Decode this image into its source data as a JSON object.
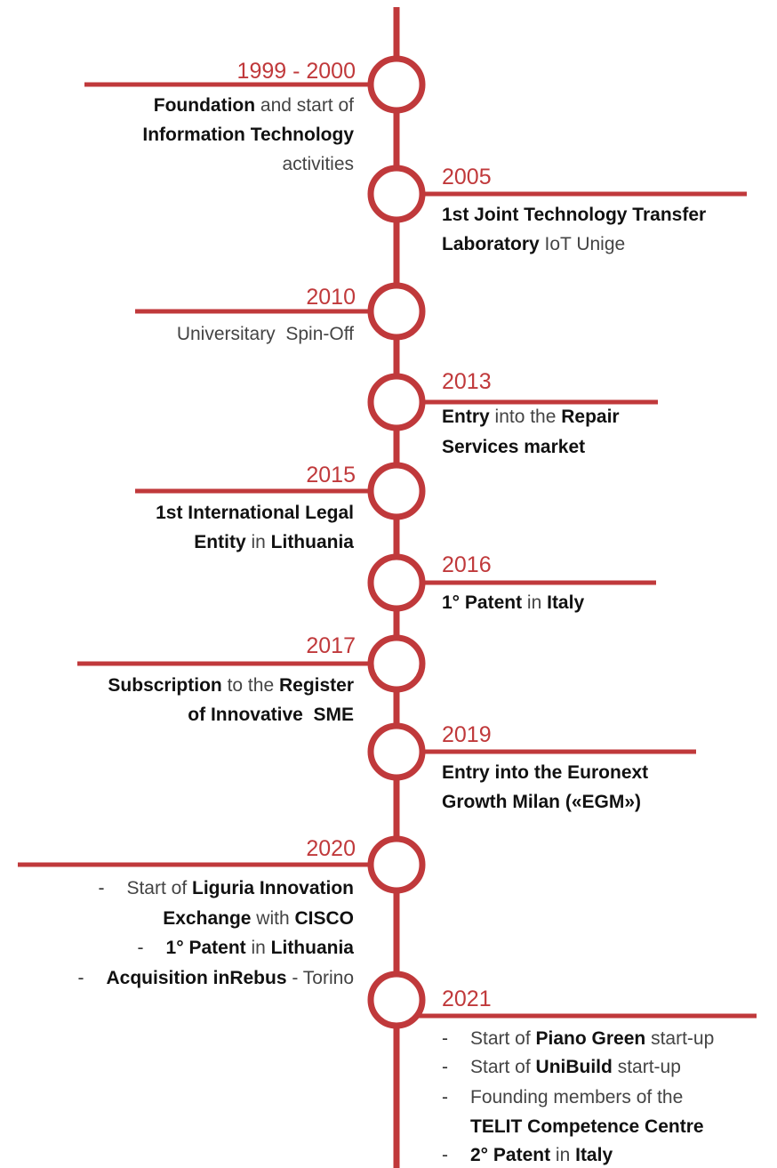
{
  "events": [
    {
      "year": "1999 - 2000",
      "side": "left",
      "lines": [
        {
          "segments": [
            {
              "text": "Foundation",
              "bold": true
            },
            {
              "text": " and start of",
              "bold": false
            }
          ]
        },
        {
          "segments": [
            {
              "text": "Information Technology",
              "bold": true
            }
          ]
        },
        {
          "segments": [
            {
              "text": "activities",
              "bold": false
            }
          ]
        }
      ]
    },
    {
      "year": "2005",
      "side": "right",
      "lines": [
        {
          "segments": [
            {
              "text": "1st Joint Technology Transfer",
              "bold": true
            }
          ]
        },
        {
          "segments": [
            {
              "text": "Laboratory",
              "bold": true
            },
            {
              "text": " IoT Unige",
              "bold": false
            }
          ]
        }
      ]
    },
    {
      "year": "2010",
      "side": "left",
      "lines": [
        {
          "segments": [
            {
              "text": "Universitary  Spin-Off",
              "bold": false
            }
          ]
        }
      ]
    },
    {
      "year": "2013",
      "side": "right",
      "lines": [
        {
          "segments": [
            {
              "text": "Entry",
              "bold": true
            },
            {
              "text": " into the ",
              "bold": false
            },
            {
              "text": "Repair",
              "bold": true
            }
          ]
        },
        {
          "segments": [
            {
              "text": "Services market",
              "bold": true
            }
          ]
        }
      ]
    },
    {
      "year": "2015",
      "side": "left",
      "lines": [
        {
          "segments": [
            {
              "text": "1st International Legal",
              "bold": true
            }
          ]
        },
        {
          "segments": [
            {
              "text": "Entity",
              "bold": true
            },
            {
              "text": " in ",
              "bold": false
            },
            {
              "text": "Lithuania",
              "bold": true
            }
          ]
        }
      ]
    },
    {
      "year": "2016",
      "side": "right",
      "lines": [
        {
          "segments": [
            {
              "text": "1° Patent",
              "bold": true
            },
            {
              "text": " in ",
              "bold": false
            },
            {
              "text": "Italy",
              "bold": true
            }
          ]
        }
      ]
    },
    {
      "year": "2017",
      "side": "left",
      "lines": [
        {
          "segments": [
            {
              "text": "Subscription",
              "bold": true
            },
            {
              "text": " to the ",
              "bold": false
            },
            {
              "text": "Register",
              "bold": true
            }
          ]
        },
        {
          "segments": [
            {
              "text": "of Innovative  SME",
              "bold": true
            }
          ]
        }
      ]
    },
    {
      "year": "2019",
      "side": "right",
      "lines": [
        {
          "segments": [
            {
              "text": "Entry into the Euronext",
              "bold": true
            }
          ]
        },
        {
          "segments": [
            {
              "text": "Growth Milan («EGM»)",
              "bold": true
            }
          ]
        }
      ]
    },
    {
      "year": "2020",
      "side": "left",
      "lines": [
        {
          "bullet": "-",
          "segments": [
            {
              "text": "Start of ",
              "bold": false
            },
            {
              "text": "Liguria Innovation",
              "bold": true
            }
          ]
        },
        {
          "segments": [
            {
              "text": "Exchange",
              "bold": true
            },
            {
              "text": " with ",
              "bold": false
            },
            {
              "text": "CISCO",
              "bold": true
            }
          ]
        },
        {
          "bullet": "-",
          "segments": [
            {
              "text": "1° Patent",
              "bold": true
            },
            {
              "text": " in ",
              "bold": false
            },
            {
              "text": "Lithuania",
              "bold": true
            }
          ]
        },
        {
          "bullet": "-",
          "segments": [
            {
              "text": "Acquisition inRebus",
              "bold": true
            },
            {
              "text": " - Torino",
              "bold": false
            }
          ]
        }
      ]
    },
    {
      "year": "2021",
      "side": "right",
      "lines": [
        {
          "bullet": "-",
          "segments": [
            {
              "text": "Start of ",
              "bold": false
            },
            {
              "text": "Piano Green",
              "bold": true
            },
            {
              "text": " start-up",
              "bold": false
            }
          ]
        },
        {
          "bullet": "-",
          "segments": [
            {
              "text": "Start of ",
              "bold": false
            },
            {
              "text": "UniBuild",
              "bold": true
            },
            {
              "text": " start-up",
              "bold": false
            }
          ]
        },
        {
          "bullet": "-",
          "segments": [
            {
              "text": "Founding members of the",
              "bold": false
            }
          ]
        },
        {
          "segments": [
            {
              "text": "TELIT Competence Centre",
              "bold": true
            }
          ]
        },
        {
          "bullet": "-",
          "segments": [
            {
              "text": "2° Patent",
              "bold": true
            },
            {
              "text": " in ",
              "bold": false
            },
            {
              "text": "Italy",
              "bold": true
            }
          ]
        }
      ]
    }
  ]
}
